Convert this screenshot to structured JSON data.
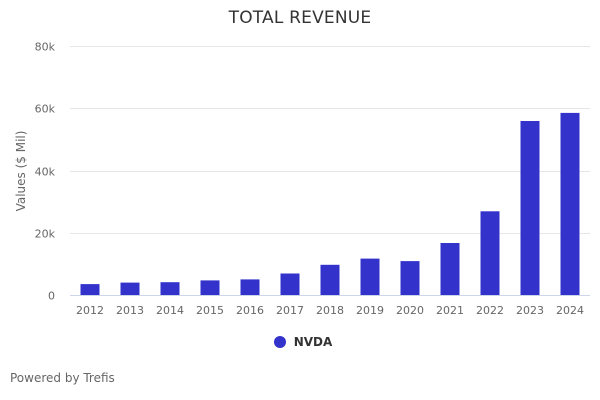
{
  "chart_data": {
    "type": "bar",
    "title": "TOTAL REVENUE",
    "xlabel": "",
    "ylabel": "Values ($ Mil)",
    "ylim": [
      0,
      80000
    ],
    "yticks": [
      0,
      20000,
      40000,
      60000,
      80000
    ],
    "ytick_labels": [
      "0",
      "20k",
      "40k",
      "60k",
      "80k"
    ],
    "grid": true,
    "legend_position": "bottom-center",
    "categories": [
      "2012",
      "2013",
      "2014",
      "2015",
      "2016",
      "2017",
      "2018",
      "2019",
      "2020",
      "2021",
      "2022",
      "2023",
      "2024"
    ],
    "series": [
      {
        "name": "NVDA",
        "color": "#3333cc",
        "values": [
          3500,
          4000,
          4100,
          4700,
          5000,
          6900,
          9700,
          11700,
          10900,
          16700,
          26900,
          55900,
          58500
        ]
      }
    ]
  },
  "credits": "Powered by Trefis"
}
